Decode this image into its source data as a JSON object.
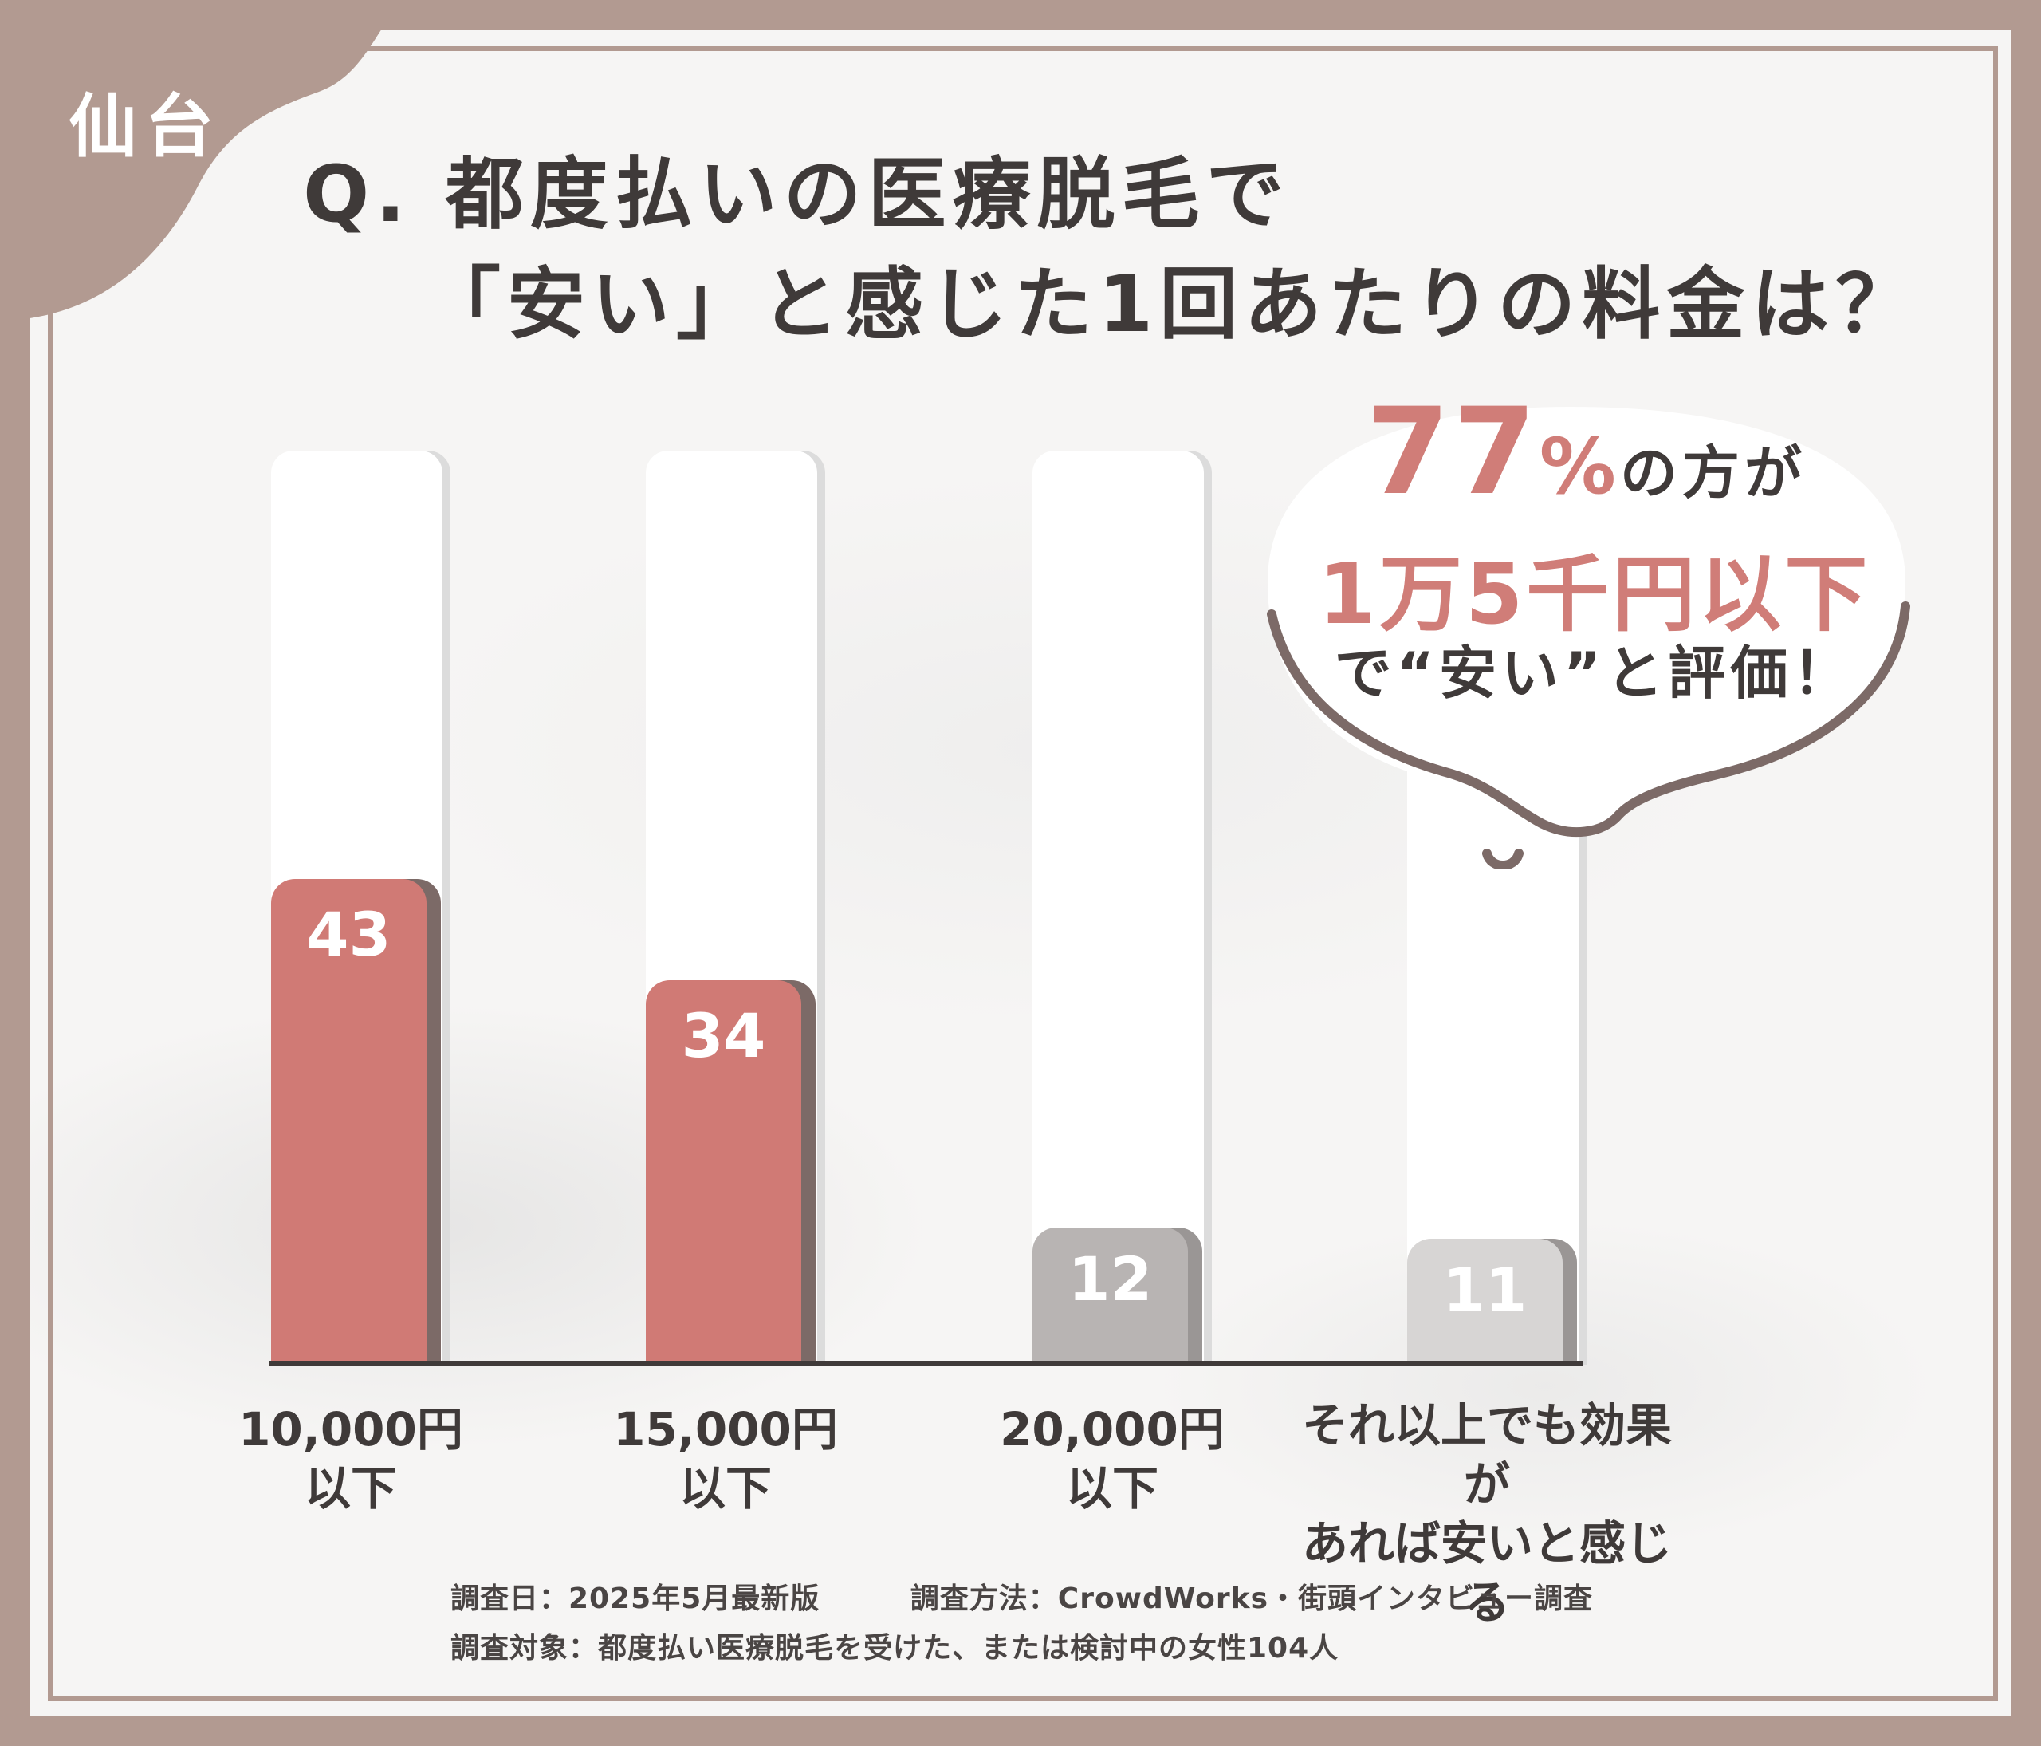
{
  "badge": {
    "city": "仙台"
  },
  "question": {
    "line1": "Q. 都度払いの医療脱毛で",
    "line2": "「安い」と感じた1回あたりの料金は？"
  },
  "callout": {
    "percent": "77",
    "percent_suffix": "%",
    "after_percent": "の方が",
    "highlight": "1万5千円以下",
    "verdict": "で“安い”と評価！"
  },
  "chart_data": {
    "type": "bar",
    "categories": [
      "10,000円 以下",
      "15,000円 以下",
      "20,000円 以下",
      "それ以上でも効果が あれば安いと感じる"
    ],
    "category_lines": [
      [
        "10,000円",
        "以下"
      ],
      [
        "15,000円",
        "以下"
      ],
      [
        "20,000円",
        "以下"
      ],
      [
        "それ以上でも効果が",
        "あれば安いと感じる"
      ]
    ],
    "values": [
      43,
      34,
      12,
      11
    ],
    "value_labels": [
      "43",
      "34",
      "12",
      "11"
    ],
    "ylim": [
      0,
      100
    ],
    "grid": false,
    "colors": {
      "highlight_bar": "#d07a75",
      "highlight_shadow": "#7c6a67",
      "muted_bar": "#b8b4b3",
      "muted_bar_light": "#d7d5d4",
      "muted_shadow": "#9a9695"
    }
  },
  "footer": {
    "date": "調査日：2025年5月最新版",
    "method": "調査方法：CrowdWorks・街頭インタビュー調査",
    "target": "調査対象：都度払い医療脱毛を受けた、または検討中の女性104人"
  },
  "theme": {
    "frame": "#b29a91",
    "panel": "#f6f5f4",
    "text": "#3f3a39",
    "accent": "#d07d78"
  }
}
